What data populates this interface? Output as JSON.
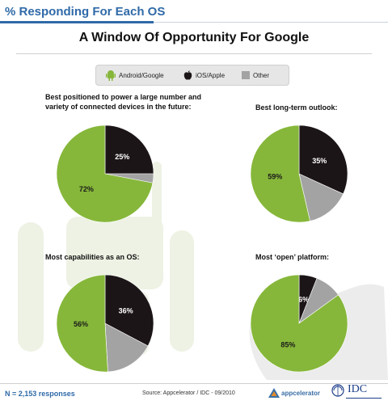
{
  "header": {
    "title": "% Responding For Each OS"
  },
  "main_title": "A Window Of Opportunity For Google",
  "legend": [
    {
      "label": "Android/Google",
      "color": "#86b73a",
      "icon": "android-icon"
    },
    {
      "label": "iOS/Apple",
      "color": "#1c1517",
      "icon": "apple-icon"
    },
    {
      "label": "Other",
      "color": "#a3a3a3",
      "icon": "square-icon"
    }
  ],
  "footer": {
    "n_label": "N = 2,153 responses",
    "source": "Source: Appcelerator / IDC - 09/2010",
    "appcelerator": "appcelerator",
    "idc": "IDC"
  },
  "chart_data": [
    {
      "type": "pie",
      "title": "Best positioned to power a large number and variety of connected devices in the future:",
      "slices": [
        {
          "name": "iOS/Apple",
          "value": 25,
          "label": "25%"
        },
        {
          "name": "Other",
          "value": 3,
          "label": ""
        },
        {
          "name": "Android/Google",
          "value": 72,
          "label": "72%"
        }
      ]
    },
    {
      "type": "pie",
      "title": "Best long-term outlook:",
      "slices": [
        {
          "name": "iOS/Apple",
          "value": 35,
          "label": "35%"
        },
        {
          "name": "Other",
          "value": 16,
          "label": ""
        },
        {
          "name": "Android/Google",
          "value": 59,
          "label": "59%"
        }
      ]
    },
    {
      "type": "pie",
      "title": "Most capabilities as an OS:",
      "slices": [
        {
          "name": "iOS/Apple",
          "value": 36,
          "label": "36%"
        },
        {
          "name": "Other",
          "value": 18,
          "label": ""
        },
        {
          "name": "Android/Google",
          "value": 56,
          "label": "56%"
        }
      ]
    },
    {
      "type": "pie",
      "title": "Most ‘open’ platform:",
      "slices": [
        {
          "name": "iOS/Apple",
          "value": 6,
          "label": "6%"
        },
        {
          "name": "Other",
          "value": 9,
          "label": ""
        },
        {
          "name": "Android/Google",
          "value": 85,
          "label": "85%"
        }
      ]
    }
  ]
}
